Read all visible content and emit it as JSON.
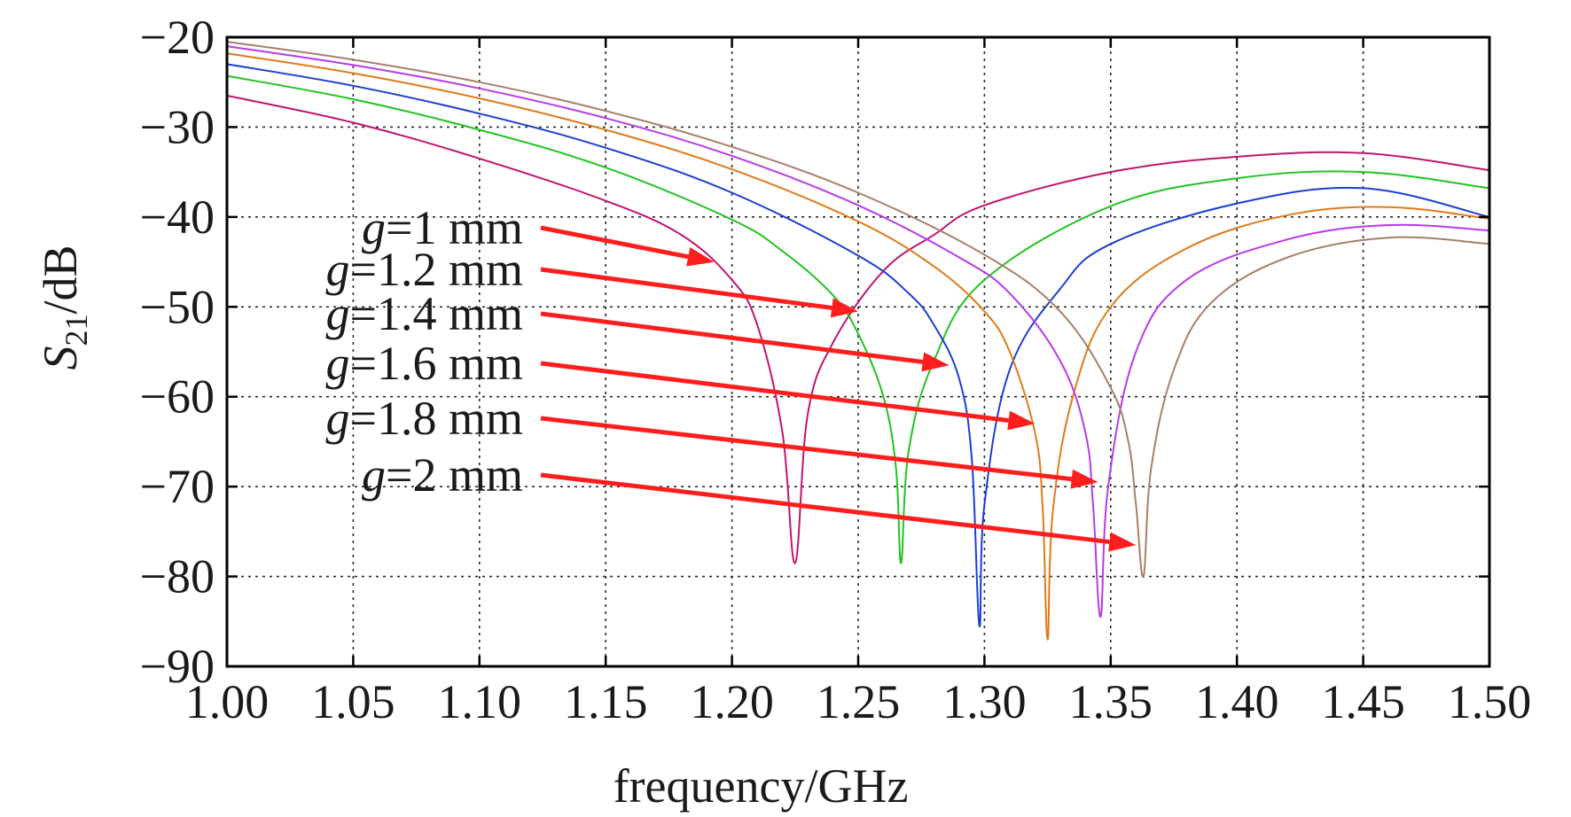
{
  "chart_data": {
    "type": "line",
    "xlabel": "frequency/GHz",
    "ylabel": {
      "base": "S",
      "sub": "21",
      "rest": "/dB"
    },
    "xlim": [
      1.0,
      1.5
    ],
    "ylim": [
      -90,
      -20
    ],
    "xticks": [
      "1.00",
      "1.05",
      "1.10",
      "1.15",
      "1.20",
      "1.25",
      "1.30",
      "1.35",
      "1.40",
      "1.45",
      "1.50"
    ],
    "yticks": [
      "−20",
      "−30",
      "−40",
      "−50",
      "−60",
      "−70",
      "−80",
      "−90"
    ],
    "grid": true,
    "series": [
      {
        "name": "g=1 mm",
        "g": "g",
        "label": "=1 mm",
        "color": "#c0156e",
        "arrow_to": [
          1.193,
          -45.0
        ],
        "x": [
          1.0,
          1.05,
          1.1,
          1.15,
          1.18,
          1.2,
          1.21,
          1.22,
          1.225,
          1.23,
          1.24,
          1.26,
          1.28,
          1.3,
          1.35,
          1.4,
          1.45,
          1.5
        ],
        "y": [
          -26.5,
          -29.5,
          -33.5,
          -38.2,
          -42,
          -47,
          -52,
          -64,
          -78.5,
          -62,
          -54,
          -46,
          -42,
          -38.7,
          -35,
          -33.3,
          -32.9,
          -34.8
        ]
      },
      {
        "name": "g=1.2 mm",
        "g": "g",
        "label": "=1.2 mm",
        "color": "#22c322",
        "arrow_to": [
          1.25,
          -50.5
        ],
        "x": [
          1.0,
          1.05,
          1.1,
          1.15,
          1.2,
          1.22,
          1.24,
          1.25,
          1.26,
          1.265,
          1.267,
          1.27,
          1.28,
          1.3,
          1.35,
          1.4,
          1.45,
          1.5
        ],
        "y": [
          -24.3,
          -26.9,
          -30.3,
          -34.5,
          -40.3,
          -43.8,
          -48.7,
          -53,
          -60,
          -68,
          -78.5,
          -66,
          -56,
          -47,
          -38.8,
          -35.7,
          -35.0,
          -36.8
        ]
      },
      {
        "name": "g=1.4 mm",
        "g": "g",
        "label": "=1.4 mm",
        "color": "#1a3fd0",
        "arrow_to": [
          1.286,
          -56.5
        ],
        "x": [
          1.0,
          1.05,
          1.1,
          1.15,
          1.2,
          1.25,
          1.27,
          1.28,
          1.29,
          1.295,
          1.298,
          1.3,
          1.31,
          1.33,
          1.35,
          1.4,
          1.45,
          1.5
        ],
        "y": [
          -23.0,
          -25.4,
          -28.5,
          -32.3,
          -37.3,
          -44.3,
          -48.5,
          -52,
          -58,
          -67,
          -85.5,
          -72,
          -57,
          -48,
          -43,
          -38.5,
          -36.8,
          -40.0
        ]
      },
      {
        "name": "g=1.6 mm",
        "g": "g",
        "label": "=1.6 mm",
        "color": "#e07a1a",
        "arrow_to": [
          1.32,
          -63.0
        ],
        "x": [
          1.0,
          1.05,
          1.1,
          1.15,
          1.2,
          1.25,
          1.28,
          1.3,
          1.31,
          1.32,
          1.323,
          1.325,
          1.327,
          1.335,
          1.35,
          1.38,
          1.42,
          1.46,
          1.5
        ],
        "y": [
          -21.8,
          -24.0,
          -26.8,
          -30.3,
          -34.7,
          -40.5,
          -45.5,
          -50.5,
          -55,
          -64,
          -72,
          -87,
          -73,
          -60,
          -50,
          -43.5,
          -39.8,
          -38.9,
          -40.2
        ]
      },
      {
        "name": "g=1.8 mm",
        "g": "g",
        "label": "=1.8 mm",
        "color": "#b83be8",
        "arrow_to": [
          1.345,
          -69.5
        ],
        "x": [
          1.0,
          1.05,
          1.1,
          1.15,
          1.2,
          1.25,
          1.29,
          1.31,
          1.33,
          1.34,
          1.343,
          1.346,
          1.349,
          1.36,
          1.38,
          1.42,
          1.46,
          1.5
        ],
        "y": [
          -21.0,
          -23.1,
          -25.7,
          -29.0,
          -33.2,
          -38.7,
          -44.5,
          -48.5,
          -56,
          -64,
          -72,
          -84.5,
          -70,
          -55,
          -47,
          -42.5,
          -40.9,
          -41.5
        ]
      },
      {
        "name": "g=2 mm",
        "g": "g",
        "label": "=2 mm",
        "color": "#a87f6c",
        "arrow_to": [
          1.36,
          -76.5
        ],
        "x": [
          1.0,
          1.05,
          1.1,
          1.15,
          1.2,
          1.25,
          1.3,
          1.33,
          1.35,
          1.357,
          1.36,
          1.363,
          1.366,
          1.375,
          1.39,
          1.42,
          1.46,
          1.5
        ],
        "y": [
          -20.5,
          -22.5,
          -25.0,
          -28.2,
          -32.2,
          -37.3,
          -44.2,
          -50.5,
          -59,
          -65,
          -72,
          -80,
          -68,
          -57,
          -49.5,
          -44.5,
          -42.3,
          -43.0
        ]
      }
    ]
  }
}
